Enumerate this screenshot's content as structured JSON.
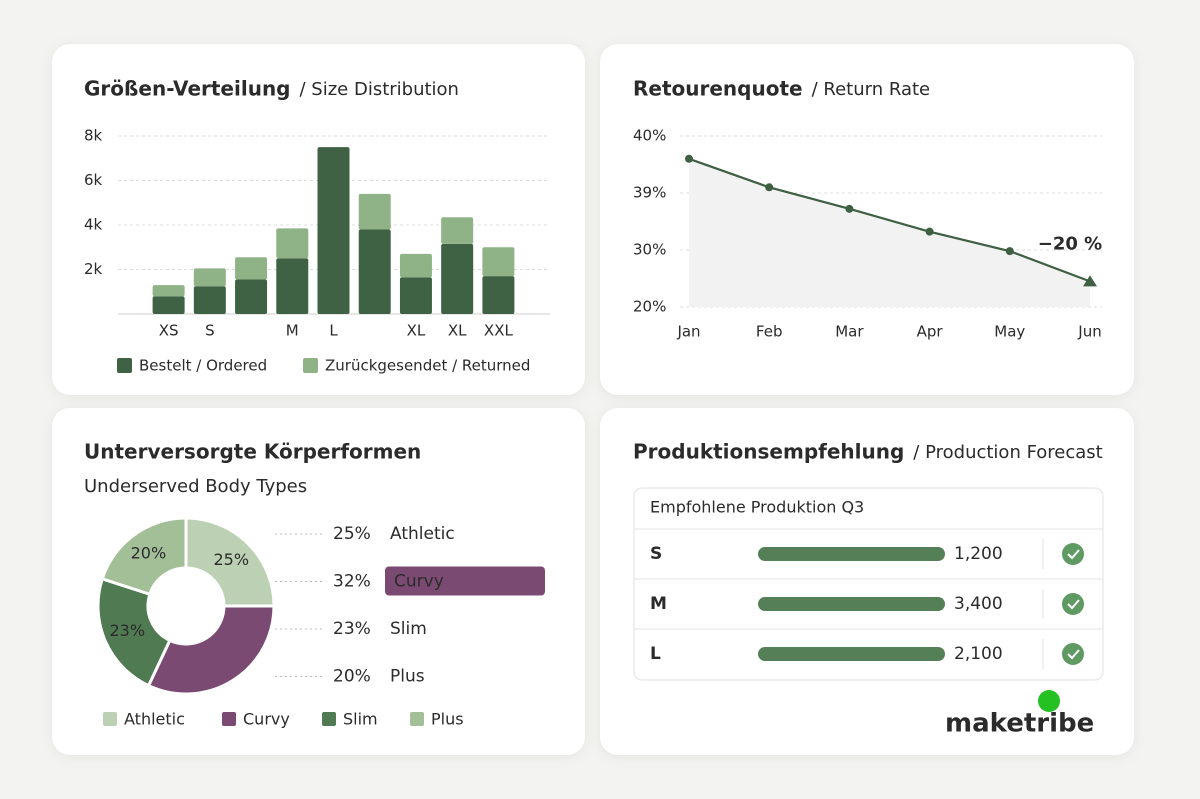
{
  "chart_data": [
    {
      "type": "bar",
      "stacked": true,
      "title": "Größen-Verteilung",
      "subtitle": "/ Size Distribution",
      "categories": [
        "XS",
        "S",
        null,
        "M",
        "L",
        null,
        "XL",
        "XL",
        "XXL"
      ],
      "series": [
        {
          "name": "Bestelt / Ordered",
          "color": "#3e6243",
          "values": [
            0.8,
            1.25,
            1.55,
            2.5,
            7.5,
            3.8,
            1.65,
            3.15,
            1.7
          ]
        },
        {
          "name": "Zurückgesendet / Returned",
          "color": "#8fb386",
          "values": [
            0.5,
            0.8,
            1.0,
            1.35,
            0,
            1.6,
            1.05,
            1.2,
            1.3
          ]
        }
      ],
      "ylim": [
        0,
        8
      ],
      "yticks": [
        {
          "value": 2,
          "label": "2k"
        },
        {
          "value": 4,
          "label": "4k"
        },
        {
          "value": 6,
          "label": "6k"
        },
        {
          "value": 8,
          "label": "8k"
        }
      ],
      "grid": true
    },
    {
      "type": "line",
      "title": "Retourenquote",
      "subtitle": "/ Return Rate",
      "categories": [
        "Jan",
        "Feb",
        "Mar",
        "Apr",
        "May",
        "Jun"
      ],
      "values": [
        39.6,
        39.1,
        36.5,
        32.9,
        29.8,
        24.5
      ],
      "color": "#3e5f42",
      "ylim": [
        20,
        40
      ],
      "yticks": [
        {
          "value": 20,
          "label": "20%"
        },
        {
          "value": 30,
          "label": "30%"
        },
        {
          "value": 39,
          "label": "39%"
        },
        {
          "value": 40,
          "label": "40%"
        }
      ],
      "annotation": "−20 %",
      "grid": true
    },
    {
      "type": "pie",
      "donut": true,
      "title": "Unterversorgte Körperformen",
      "subtitle": "Underserved Body Types",
      "categories": [
        "Athletic",
        "Curvy",
        "Slim",
        "Plus"
      ],
      "values": [
        25,
        32,
        23,
        20
      ],
      "value_labels": [
        "25%",
        "32%",
        "23%",
        "20%"
      ],
      "colors": [
        "#bcd1b3",
        "#7b4a73",
        "#4f7a52",
        "#a3bf98"
      ]
    }
  ],
  "production": {
    "title": "Produktionsempfehlung",
    "subtitle": "/ Production Forecast",
    "table": {
      "header": "Empfohlene Produktion Q3",
      "rows": [
        [
          "S",
          "1,200"
        ],
        [
          "M",
          "3,400"
        ],
        [
          "L",
          "2,100"
        ]
      ]
    }
  },
  "logo": "maketribe"
}
